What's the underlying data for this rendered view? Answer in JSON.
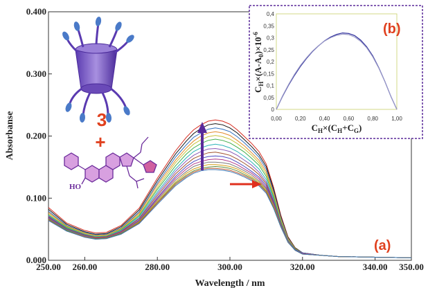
{
  "chart_data": [
    {
      "type": "line",
      "panel_label": "(a)",
      "xlabel": "Wavelength / nm",
      "ylabel": "Absorbanse",
      "xlim": [
        250,
        350
      ],
      "ylim": [
        0,
        0.4
      ],
      "x_ticks": [
        "250.00",
        "260.00",
        "280.00",
        "300.00",
        "320.00",
        "340.00",
        "350.00"
      ],
      "x_tick_values": [
        250,
        260,
        280,
        300,
        320,
        340,
        350
      ],
      "y_ticks": [
        "0.000",
        "0.100",
        "0.200",
        "0.300",
        "0.400"
      ],
      "y_tick_values": [
        0,
        0.1,
        0.2,
        0.3,
        0.4
      ],
      "x": [
        250,
        255,
        260,
        263,
        266,
        270,
        275,
        280,
        285,
        288,
        290,
        292,
        294,
        296,
        298,
        300,
        302,
        304,
        306,
        308,
        310,
        312,
        314,
        316,
        318,
        320,
        325,
        330,
        340,
        350
      ],
      "series": [
        {
          "color": "#d62a1e",
          "values": [
            0.085,
            0.06,
            0.048,
            0.044,
            0.045,
            0.056,
            0.084,
            0.132,
            0.176,
            0.198,
            0.21,
            0.218,
            0.224,
            0.226,
            0.224,
            0.219,
            0.21,
            0.199,
            0.188,
            0.175,
            0.155,
            0.118,
            0.073,
            0.038,
            0.02,
            0.012,
            0.008,
            0.006,
            0.005,
            0.004
          ]
        },
        {
          "color": "#111111",
          "values": [
            0.082,
            0.058,
            0.046,
            0.042,
            0.043,
            0.054,
            0.081,
            0.128,
            0.171,
            0.192,
            0.204,
            0.212,
            0.218,
            0.22,
            0.218,
            0.213,
            0.205,
            0.194,
            0.183,
            0.17,
            0.151,
            0.115,
            0.071,
            0.037,
            0.02,
            0.012,
            0.008,
            0.006,
            0.005,
            0.004
          ]
        },
        {
          "color": "#2f6fbf",
          "values": [
            0.079,
            0.056,
            0.045,
            0.041,
            0.042,
            0.052,
            0.078,
            0.124,
            0.166,
            0.186,
            0.198,
            0.205,
            0.211,
            0.213,
            0.211,
            0.207,
            0.199,
            0.189,
            0.178,
            0.166,
            0.147,
            0.112,
            0.069,
            0.036,
            0.019,
            0.012,
            0.008,
            0.006,
            0.005,
            0.004
          ]
        },
        {
          "color": "#e38b2c",
          "values": [
            0.077,
            0.055,
            0.044,
            0.04,
            0.041,
            0.051,
            0.076,
            0.121,
            0.161,
            0.181,
            0.192,
            0.2,
            0.205,
            0.207,
            0.205,
            0.201,
            0.193,
            0.184,
            0.173,
            0.161,
            0.143,
            0.109,
            0.067,
            0.035,
            0.019,
            0.011,
            0.008,
            0.006,
            0.005,
            0.004
          ]
        },
        {
          "color": "#c8c23a",
          "values": [
            0.075,
            0.054,
            0.043,
            0.039,
            0.04,
            0.05,
            0.074,
            0.117,
            0.157,
            0.176,
            0.187,
            0.194,
            0.199,
            0.201,
            0.199,
            0.195,
            0.188,
            0.179,
            0.169,
            0.157,
            0.139,
            0.106,
            0.065,
            0.034,
            0.018,
            0.011,
            0.008,
            0.006,
            0.005,
            0.004
          ]
        },
        {
          "color": "#3fae4a",
          "values": [
            0.073,
            0.053,
            0.042,
            0.038,
            0.039,
            0.049,
            0.072,
            0.114,
            0.152,
            0.171,
            0.181,
            0.188,
            0.193,
            0.195,
            0.193,
            0.189,
            0.182,
            0.174,
            0.164,
            0.153,
            0.135,
            0.103,
            0.063,
            0.033,
            0.018,
            0.011,
            0.008,
            0.006,
            0.005,
            0.004
          ]
        },
        {
          "color": "#2bb3b8",
          "values": [
            0.072,
            0.052,
            0.042,
            0.038,
            0.039,
            0.048,
            0.07,
            0.11,
            0.147,
            0.165,
            0.175,
            0.181,
            0.185,
            0.187,
            0.185,
            0.181,
            0.175,
            0.167,
            0.158,
            0.147,
            0.13,
            0.1,
            0.061,
            0.032,
            0.017,
            0.011,
            0.008,
            0.006,
            0.005,
            0.004
          ]
        },
        {
          "color": "#8a5ab8",
          "values": [
            0.071,
            0.051,
            0.041,
            0.037,
            0.038,
            0.047,
            0.068,
            0.107,
            0.143,
            0.16,
            0.169,
            0.175,
            0.179,
            0.18,
            0.178,
            0.175,
            0.169,
            0.161,
            0.153,
            0.142,
            0.126,
            0.097,
            0.06,
            0.032,
            0.017,
            0.011,
            0.008,
            0.006,
            0.005,
            0.004
          ]
        },
        {
          "color": "#a0522d",
          "values": [
            0.07,
            0.051,
            0.041,
            0.037,
            0.038,
            0.046,
            0.067,
            0.104,
            0.139,
            0.155,
            0.164,
            0.169,
            0.173,
            0.174,
            0.172,
            0.169,
            0.163,
            0.156,
            0.148,
            0.138,
            0.123,
            0.095,
            0.059,
            0.031,
            0.017,
            0.011,
            0.008,
            0.006,
            0.005,
            0.004
          ]
        },
        {
          "color": "#4a4ac0",
          "values": [
            0.069,
            0.05,
            0.04,
            0.036,
            0.037,
            0.045,
            0.065,
            0.101,
            0.135,
            0.151,
            0.159,
            0.164,
            0.167,
            0.168,
            0.167,
            0.164,
            0.158,
            0.151,
            0.143,
            0.134,
            0.12,
            0.093,
            0.058,
            0.031,
            0.017,
            0.011,
            0.008,
            0.006,
            0.005,
            0.004
          ]
        },
        {
          "color": "#b03a8a",
          "values": [
            0.068,
            0.049,
            0.039,
            0.036,
            0.037,
            0.045,
            0.064,
            0.099,
            0.132,
            0.147,
            0.155,
            0.159,
            0.162,
            0.163,
            0.162,
            0.159,
            0.154,
            0.147,
            0.14,
            0.131,
            0.117,
            0.091,
            0.057,
            0.03,
            0.016,
            0.011,
            0.008,
            0.006,
            0.005,
            0.004
          ]
        },
        {
          "color": "#7a7a7a",
          "values": [
            0.067,
            0.049,
            0.039,
            0.035,
            0.036,
            0.044,
            0.063,
            0.097,
            0.129,
            0.143,
            0.151,
            0.155,
            0.158,
            0.158,
            0.157,
            0.155,
            0.15,
            0.144,
            0.137,
            0.128,
            0.115,
            0.089,
            0.056,
            0.03,
            0.016,
            0.01,
            0.008,
            0.006,
            0.005,
            0.004
          ]
        },
        {
          "color": "#d4a017",
          "values": [
            0.066,
            0.048,
            0.038,
            0.035,
            0.036,
            0.043,
            0.062,
            0.095,
            0.126,
            0.14,
            0.147,
            0.151,
            0.154,
            0.154,
            0.153,
            0.151,
            0.147,
            0.141,
            0.134,
            0.126,
            0.113,
            0.088,
            0.055,
            0.03,
            0.016,
            0.01,
            0.008,
            0.006,
            0.005,
            0.004
          ]
        },
        {
          "color": "#5c8a3a",
          "values": [
            0.066,
            0.048,
            0.038,
            0.035,
            0.036,
            0.043,
            0.061,
            0.093,
            0.124,
            0.137,
            0.144,
            0.148,
            0.15,
            0.151,
            0.15,
            0.148,
            0.144,
            0.138,
            0.132,
            0.124,
            0.111,
            0.086,
            0.055,
            0.029,
            0.016,
            0.01,
            0.008,
            0.006,
            0.005,
            0.004
          ]
        },
        {
          "color": "#c2603a",
          "values": [
            0.065,
            0.047,
            0.038,
            0.034,
            0.035,
            0.042,
            0.06,
            0.092,
            0.122,
            0.135,
            0.142,
            0.146,
            0.148,
            0.148,
            0.147,
            0.145,
            0.141,
            0.136,
            0.13,
            0.122,
            0.11,
            0.085,
            0.054,
            0.029,
            0.016,
            0.01,
            0.008,
            0.006,
            0.005,
            0.004
          ]
        },
        {
          "color": "#3a7ab8",
          "values": [
            0.064,
            0.047,
            0.037,
            0.034,
            0.035,
            0.042,
            0.059,
            0.09,
            0.12,
            0.133,
            0.14,
            0.144,
            0.146,
            0.146,
            0.145,
            0.143,
            0.139,
            0.134,
            0.128,
            0.12,
            0.108,
            0.084,
            0.054,
            0.029,
            0.016,
            0.01,
            0.008,
            0.006,
            0.005,
            0.004
          ]
        }
      ]
    },
    {
      "type": "line",
      "panel_label": "(b)",
      "xlabel": "C_H×(C_H+C_G)",
      "ylabel": "C_H×(A-A_0)×10^-6",
      "xlim": [
        0,
        1
      ],
      "ylim": [
        0,
        0.4
      ],
      "x_ticks": [
        "0,00",
        "0,20",
        "0,40",
        "0,60",
        "0,80",
        "1,00"
      ],
      "x_tick_values": [
        0,
        0.2,
        0.4,
        0.6,
        0.8,
        1.0
      ],
      "y_ticks": [
        "0",
        "0,05",
        "0,1",
        "0,15",
        "0,2",
        "0,25",
        "0,3",
        "0,35",
        "0,4"
      ],
      "y_tick_values": [
        0,
        0.05,
        0.1,
        0.15,
        0.2,
        0.25,
        0.3,
        0.35,
        0.4
      ],
      "x": [
        0,
        0.05,
        0.1,
        0.15,
        0.2,
        0.25,
        0.3,
        0.35,
        0.4,
        0.45,
        0.5,
        0.55,
        0.6,
        0.65,
        0.7,
        0.75,
        0.8,
        0.85,
        0.9,
        0.95,
        1.0
      ],
      "series": [
        {
          "color": "#2b2b9a",
          "values": [
            0,
            0.053,
            0.1,
            0.142,
            0.18,
            0.213,
            0.242,
            0.266,
            0.287,
            0.303,
            0.314,
            0.32,
            0.318,
            0.309,
            0.29,
            0.262,
            0.224,
            0.175,
            0.118,
            0.055,
            0
          ]
        },
        {
          "color": "#9a9ac8",
          "values": [
            0,
            0.055,
            0.103,
            0.146,
            0.184,
            0.216,
            0.244,
            0.267,
            0.286,
            0.3,
            0.31,
            0.315,
            0.313,
            0.303,
            0.285,
            0.258,
            0.22,
            0.173,
            0.117,
            0.055,
            0
          ]
        }
      ]
    }
  ],
  "labels": {
    "compound": "3",
    "plus": "+",
    "ho": "HO"
  },
  "colors": {
    "accent": "#e0401e",
    "arrow_up": "#5a2a9a",
    "arrow_right": "#e0301e",
    "inset_border": "#5a2a9a",
    "molecule": "#6a2a9a"
  }
}
